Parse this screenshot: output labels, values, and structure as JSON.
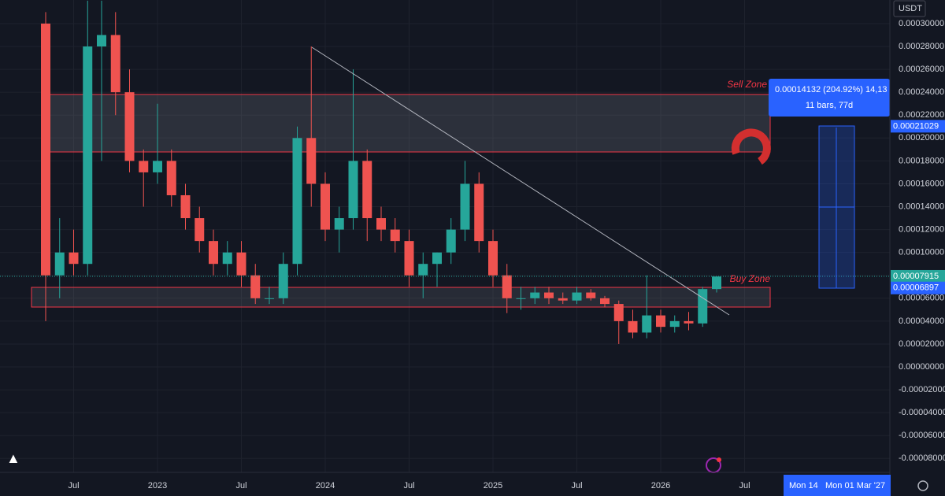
{
  "chart_data": {
    "type": "candlestick",
    "currency": "USDT",
    "categories": [
      null,
      null,
      "Jul",
      null,
      null,
      null,
      null,
      null,
      "2023",
      null,
      null,
      null,
      null,
      null,
      "Jul",
      null,
      null,
      null,
      null,
      null,
      "2024",
      null,
      null,
      null,
      null,
      null,
      "Jul",
      null,
      null,
      null,
      null,
      null,
      "2025",
      null,
      null,
      null,
      null,
      null,
      "Jul",
      null,
      null,
      null,
      null,
      null,
      "2026",
      null,
      null,
      null,
      null,
      null,
      "Jul"
    ],
    "open": [
      0.0003,
      8e-05,
      0.0001,
      9e-05,
      0.00028,
      0.00029,
      0.00024,
      0.00018,
      0.00017,
      0.00018,
      0.00015,
      0.00013,
      0.00011,
      9e-05,
      0.0001,
      8e-05,
      6e-05,
      6e-05,
      9e-05,
      0.0002,
      0.00016,
      0.00012,
      0.00013,
      0.00018,
      0.00013,
      0.00012,
      0.00011,
      8e-05,
      9e-05,
      0.0001,
      0.00012,
      0.00016,
      0.00011,
      8e-05,
      6e-05,
      6e-05,
      6.5e-05,
      6e-05,
      5.8e-05,
      6.5e-05,
      6e-05,
      5.5e-05,
      4e-05,
      3e-05,
      4.5e-05,
      3.5e-05,
      4e-05,
      3.8e-05,
      6.8e-05,
      null,
      null
    ],
    "high": [
      0.00031,
      0.00013,
      0.00012,
      0.00032,
      0.00032,
      0.00031,
      0.00026,
      0.00019,
      0.00023,
      0.00019,
      0.00016,
      0.00014,
      0.00012,
      0.00011,
      0.00011,
      9e-05,
      7e-05,
      0.0001,
      0.00021,
      0.00028,
      0.00017,
      0.00014,
      0.00026,
      0.00019,
      0.00014,
      0.00013,
      0.00012,
      0.0001,
      0.0001,
      0.00013,
      0.00018,
      0.00017,
      0.00012,
      9e-05,
      7e-05,
      7e-05,
      7e-05,
      6.5e-05,
      7e-05,
      6.8e-05,
      6.2e-05,
      5.8e-05,
      5e-05,
      8e-05,
      5e-05,
      4.5e-05,
      4.8e-05,
      7e-05,
      7.9e-05,
      null,
      null
    ],
    "low": [
      4e-05,
      6e-05,
      8e-05,
      8e-05,
      0.00018,
      0.00022,
      0.00017,
      0.00014,
      0.00016,
      0.00014,
      0.00012,
      0.0001,
      8e-05,
      8e-05,
      7e-05,
      5.5e-05,
      5.5e-05,
      5.5e-05,
      8e-05,
      0.00014,
      0.00011,
      0.0001,
      0.00012,
      0.00011,
      0.00011,
      0.0001,
      7e-05,
      6e-05,
      7e-05,
      9e-05,
      0.00011,
      0.0001,
      7e-05,
      4.7e-05,
      5e-05,
      5.5e-05,
      5.5e-05,
      5.5e-05,
      5.5e-05,
      5.8e-05,
      5.2e-05,
      2e-05,
      2.5e-05,
      2.5e-05,
      3e-05,
      3e-05,
      3.2e-05,
      3.5e-05,
      6.5e-05,
      null,
      null
    ],
    "close": [
      8e-05,
      0.0001,
      9e-05,
      0.00028,
      0.00029,
      0.00024,
      0.00018,
      0.00017,
      0.00018,
      0.00015,
      0.00013,
      0.00011,
      9e-05,
      0.0001,
      8e-05,
      6e-05,
      6e-05,
      9e-05,
      0.0002,
      0.00016,
      0.00012,
      0.00013,
      0.00018,
      0.00013,
      0.00012,
      0.00011,
      8e-05,
      9e-05,
      0.0001,
      0.00012,
      0.00016,
      0.00011,
      8e-05,
      6e-05,
      6e-05,
      6.5e-05,
      6e-05,
      5.8e-05,
      6.5e-05,
      6e-05,
      5.5e-05,
      4e-05,
      3e-05,
      4.5e-05,
      3.5e-05,
      4e-05,
      3.8e-05,
      6.8e-05,
      7.9e-05,
      null,
      null
    ],
    "up_color": "#26a69a",
    "down_color": "#ef5350",
    "ylim": [
      -9.217e-05,
      0.0003206
    ],
    "yticks": [
      {
        "value": 0.0003,
        "label": "0.00030000"
      },
      {
        "value": 0.00028,
        "label": "0.00028000"
      },
      {
        "value": 0.00026,
        "label": "0.00026000"
      },
      {
        "value": 0.00024,
        "label": "0.00024000"
      },
      {
        "value": 0.00022,
        "label": "0.00022000"
      },
      {
        "value": 0.0002,
        "label": "0.00020000"
      },
      {
        "value": 0.00018,
        "label": "0.00018000"
      },
      {
        "value": 0.00016,
        "label": "0.00016000"
      },
      {
        "value": 0.00014,
        "label": "0.00014000"
      },
      {
        "value": 0.00012,
        "label": "0.00012000"
      },
      {
        "value": 0.0001,
        "label": "0.00010000"
      },
      {
        "value": 8e-05,
        "label": "0.00008000"
      },
      {
        "value": 6e-05,
        "label": "0.00006000"
      },
      {
        "value": 4e-05,
        "label": "0.00004000"
      },
      {
        "value": 2e-05,
        "label": "0.00002000"
      },
      {
        "value": 0,
        "label": "0.00000000"
      },
      {
        "value": -2e-05,
        "label": "-0.00002000"
      },
      {
        "value": -4e-05,
        "label": "-0.00004000"
      },
      {
        "value": -6e-05,
        "label": "-0.00006000"
      },
      {
        "value": -8e-05,
        "label": "-0.00008000"
      }
    ],
    "grid": true,
    "price_tags": [
      {
        "value": 0.00021029,
        "color": "#2962ff"
      },
      {
        "value": 7.915e-05,
        "color": "#26a69a"
      },
      {
        "value": 6.897e-05,
        "color": "#2962ff"
      }
    ],
    "annotations": {
      "sell_zone": "Sell Zone",
      "buy_zone": "Buy Zone",
      "measure": "0.00014132 (204.92%) 14,13",
      "measure_detail": "11 bars, 77d"
    },
    "time_tags": [
      "Mon 14",
      "Mon 01 Mar '27"
    ]
  }
}
